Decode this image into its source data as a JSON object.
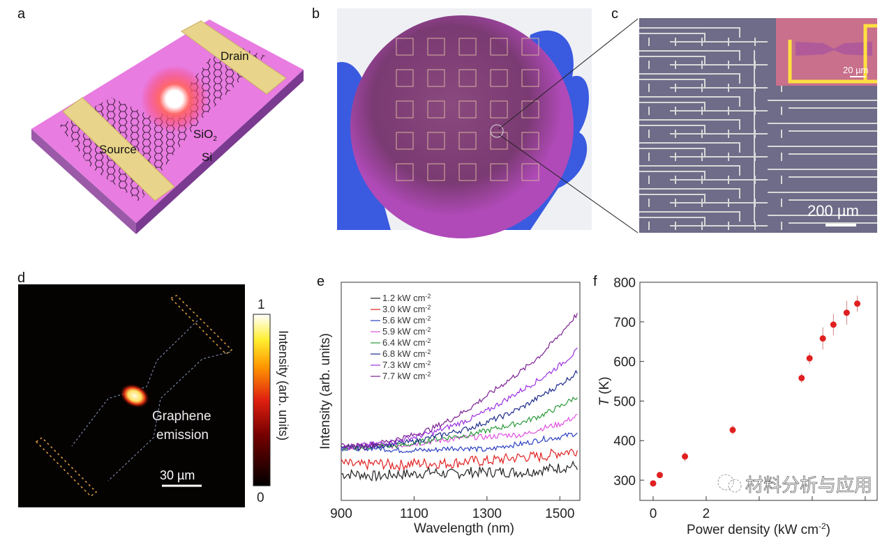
{
  "panels": {
    "a": {
      "label": "a",
      "drain": "Drain",
      "source": "Source",
      "sio2": "SiO",
      "sio2_sub": "2",
      "si": "Si"
    },
    "b": {
      "label": "b"
    },
    "c": {
      "label": "c",
      "inset_scale": "20 µm",
      "scale": "200 µm"
    },
    "d": {
      "label": "d",
      "annotation_line1": "Graphene",
      "annotation_line2": "emission",
      "scale": "30 µm",
      "colorbar_max": "1",
      "colorbar_min": "0",
      "colorbar_label": "Intensity (arb. units)"
    },
    "e": {
      "label": "e"
    },
    "f": {
      "label": "f"
    }
  },
  "watermark": "材料分析与应用",
  "chart_data": [
    {
      "panel": "e",
      "type": "line",
      "xlabel": "Wavelength (nm)",
      "ylabel": "Intensity (arb. units)",
      "xlim": [
        900,
        1555
      ],
      "xticks": [
        900,
        1100,
        1300,
        1500
      ],
      "ylim": [
        0,
        10
      ],
      "legend": "top-left",
      "x": [
        900,
        950,
        1000,
        1050,
        1100,
        1150,
        1200,
        1250,
        1300,
        1350,
        1400,
        1450,
        1500,
        1550
      ],
      "series": [
        {
          "name": "1.2 kW cm",
          "sup": "-2",
          "color": "#222222",
          "values": [
            1.2,
            1.2,
            1.1,
            1.2,
            1.2,
            1.3,
            1.2,
            1.3,
            1.3,
            1.3,
            1.3,
            1.4,
            1.5,
            1.6
          ]
        },
        {
          "name": "3.0 kW cm",
          "sup": "-2",
          "color": "#e02020",
          "values": [
            1.7,
            1.6,
            1.7,
            1.6,
            1.7,
            1.7,
            1.7,
            1.8,
            1.8,
            1.9,
            2.0,
            2.0,
            2.2,
            2.3
          ]
        },
        {
          "name": "5.6 kW cm",
          "sup": "-2",
          "color": "#2a3fc0",
          "values": [
            2.4,
            2.4,
            2.4,
            2.3,
            2.3,
            2.3,
            2.4,
            2.4,
            2.3,
            2.5,
            2.6,
            2.8,
            2.9,
            3.1
          ]
        },
        {
          "name": "5.9 kW cm",
          "sup": "-2",
          "color": "#e050e0",
          "values": [
            2.4,
            2.4,
            2.5,
            2.5,
            2.6,
            2.7,
            2.8,
            2.9,
            2.9,
            3.0,
            3.0,
            3.3,
            3.5,
            3.9
          ]
        },
        {
          "name": "6.4 kW cm",
          "sup": "-2",
          "color": "#2a9a3a",
          "values": [
            2.4,
            2.4,
            2.5,
            2.5,
            2.6,
            2.8,
            2.9,
            3.0,
            3.2,
            3.4,
            3.6,
            3.9,
            4.3,
            4.8
          ]
        },
        {
          "name": "6.8 kW cm",
          "sup": "-2",
          "color": "#1c2a8a",
          "values": [
            2.4,
            2.4,
            2.5,
            2.6,
            2.7,
            2.9,
            3.1,
            3.3,
            3.6,
            3.9,
            4.3,
            4.8,
            5.3,
            5.9
          ]
        },
        {
          "name": "7.3 kW cm",
          "sup": "-2",
          "color": "#9a30e0",
          "values": [
            2.5,
            2.5,
            2.6,
            2.7,
            2.9,
            3.1,
            3.4,
            3.7,
            4.1,
            4.6,
            5.1,
            5.6,
            6.2,
            6.9
          ]
        },
        {
          "name": "7.7 kW cm",
          "sup": "-2",
          "color": "#7a2090",
          "values": [
            2.5,
            2.5,
            2.6,
            2.8,
            3.0,
            3.3,
            3.7,
            4.2,
            4.8,
            5.4,
            6.0,
            6.7,
            7.6,
            8.6
          ]
        }
      ]
    },
    {
      "panel": "f",
      "type": "scatter",
      "xlabel": "Power density (kW cm",
      "xlabel_sup": "-2",
      "xlabel_end": ")",
      "ylabel": "T",
      "ylabel_unit": " (K)",
      "xlim": [
        -0.5,
        8.45
      ],
      "ylim": [
        249,
        800
      ],
      "xticks": [
        0,
        2,
        4,
        6,
        8
      ],
      "xtick_labels_visible": [
        "0",
        "2"
      ],
      "yticks": [
        300,
        400,
        500,
        600,
        700,
        800
      ],
      "color": "#e02020",
      "points": [
        {
          "x": 0.0,
          "y": 292,
          "err": 5
        },
        {
          "x": 0.25,
          "y": 313,
          "err": 5
        },
        {
          "x": 1.2,
          "y": 360,
          "err": 12
        },
        {
          "x": 3.0,
          "y": 427,
          "err": 12
        },
        {
          "x": 5.6,
          "y": 558,
          "err": 12
        },
        {
          "x": 5.9,
          "y": 608,
          "err": 14
        },
        {
          "x": 6.4,
          "y": 658,
          "err": 28
        },
        {
          "x": 6.8,
          "y": 693,
          "err": 27
        },
        {
          "x": 7.3,
          "y": 723,
          "err": 30
        },
        {
          "x": 7.7,
          "y": 746,
          "err": 20
        }
      ]
    }
  ]
}
